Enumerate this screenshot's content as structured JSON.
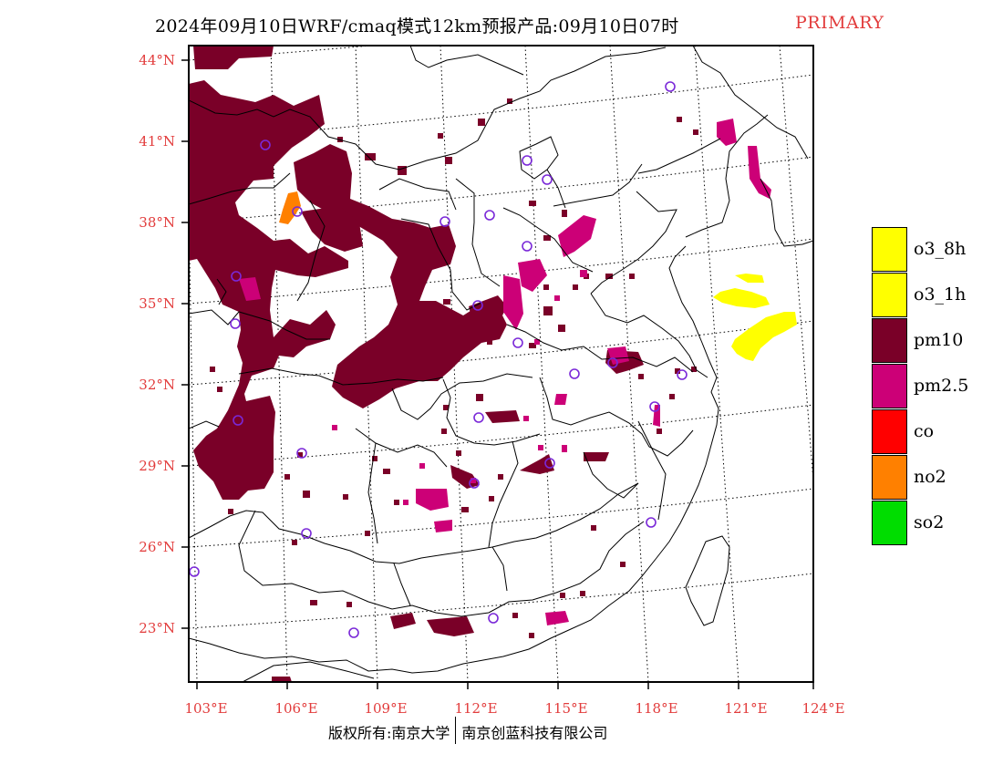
{
  "title": {
    "main": "2024年09月10日WRF/cmaq模式12km预报产品:09月10日07时",
    "tag": "PRIMARY",
    "tag_color": "#e23c3c"
  },
  "map": {
    "lat_labels": [
      "44°N",
      "41°N",
      "38°N",
      "35°N",
      "32°N",
      "29°N",
      "26°N",
      "23°N"
    ],
    "lon_labels": [
      "103°E",
      "106°E",
      "109°E",
      "112°E",
      "115°E",
      "118°E",
      "121°E",
      "124°E"
    ],
    "label_color": "#e23c3c",
    "pollutant_colors": {
      "pm10": "#7a0028",
      "pm25": "#cc0077",
      "o3": "#ffff00",
      "no2": "#ff8000",
      "station": "#7a28d8"
    }
  },
  "legend": {
    "items": [
      {
        "label": "o3_8h",
        "color": "#ffff00"
      },
      {
        "label": "o3_1h",
        "color": "#ffff00"
      },
      {
        "label": "pm10",
        "color": "#7a0028"
      },
      {
        "label": "pm2.5",
        "color": "#cc0077"
      },
      {
        "label": "co",
        "color": "#ff0000"
      },
      {
        "label": "no2",
        "color": "#ff8000"
      },
      {
        "label": "so2",
        "color": "#00dd00"
      }
    ]
  },
  "footer": {
    "left": "版权所有:南京大学",
    "right": "南京创蓝科技有限公司"
  }
}
